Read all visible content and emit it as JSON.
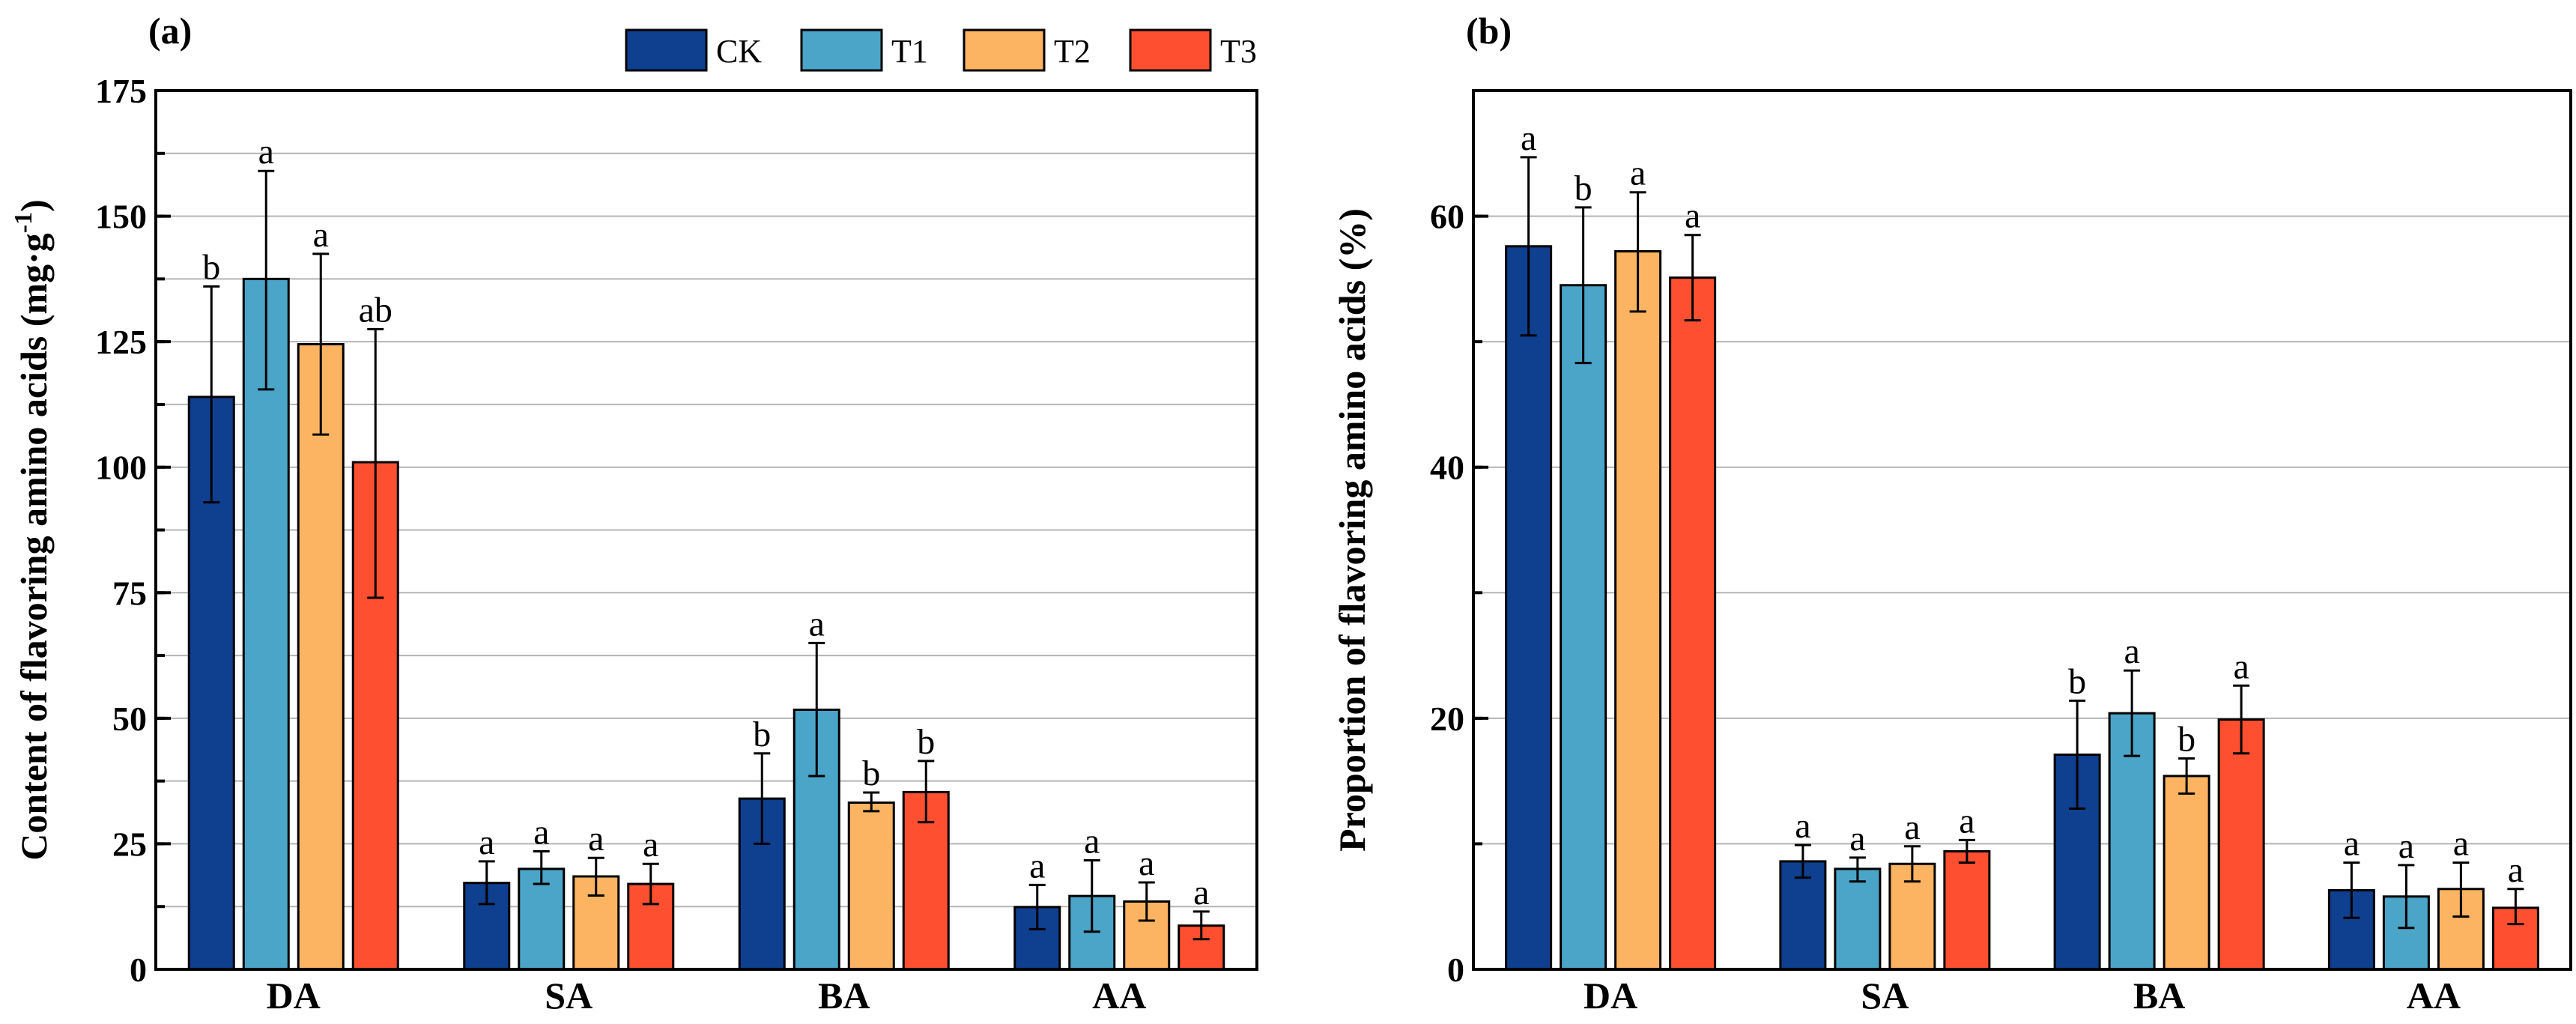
{
  "series_colors": {
    "CK": "#0f3f8f",
    "T1": "#4aa5c8",
    "T2": "#fdb462",
    "T3": "#fe5030"
  },
  "chart_data": [
    {
      "type": "bar",
      "panel": "(a)",
      "title": "",
      "xlabel": "",
      "ylabel": "Content of flavoring amino acids (mg·g",
      "ylabel_sup": "-1",
      "ylabel_end": ")",
      "ylim": [
        0,
        175
      ],
      "yticks": [
        0,
        25,
        50,
        75,
        100,
        125,
        150,
        175
      ],
      "grid_step": 12.5,
      "grid": true,
      "legend": [
        "CK",
        "T1",
        "T2",
        "T3"
      ],
      "legend_position": "top-right",
      "categories": [
        "DA",
        "SA",
        "BA",
        "AA"
      ],
      "series": [
        {
          "name": "CK",
          "values": [
            114,
            17.2,
            34,
            12.4
          ],
          "err_low": [
            93,
            13,
            25,
            8
          ],
          "err_high": [
            136,
            21.5,
            43,
            16.8
          ],
          "letters": [
            "b",
            "a",
            "b",
            "a"
          ]
        },
        {
          "name": "T1",
          "values": [
            137.5,
            20,
            51.7,
            14.6
          ],
          "err_low": [
            115.5,
            17,
            38.5,
            7.5
          ],
          "err_high": [
            159,
            23.5,
            65,
            21.7
          ],
          "letters": [
            "a",
            "a",
            "a",
            "a"
          ]
        },
        {
          "name": "T2",
          "values": [
            124.5,
            18.5,
            33.2,
            13.5
          ],
          "err_low": [
            106.5,
            14.7,
            31.5,
            9.7
          ],
          "err_high": [
            142.5,
            22.2,
            35.2,
            17.3
          ],
          "letters": [
            "a",
            "a",
            "b",
            "a"
          ]
        },
        {
          "name": "T3",
          "values": [
            101,
            17,
            35.3,
            8.7
          ],
          "err_low": [
            74,
            13,
            29.3,
            6
          ],
          "err_high": [
            127.5,
            21,
            41.5,
            11.5
          ],
          "letters": [
            "ab",
            "a",
            "b",
            "a"
          ]
        }
      ]
    },
    {
      "type": "bar",
      "panel": "(b)",
      "title": "",
      "xlabel": "",
      "ylabel": "Proportion of flavoring amino acids (%)",
      "ylim": [
        0,
        70
      ],
      "yticks": [
        0,
        20,
        40,
        60
      ],
      "grid_step": 10,
      "grid": true,
      "categories": [
        "DA",
        "SA",
        "BA",
        "AA"
      ],
      "series": [
        {
          "name": "CK",
          "values": [
            57.6,
            8.6,
            17.1,
            6.3
          ],
          "err_low": [
            50.5,
            7.3,
            12.8,
            4.1
          ],
          "err_high": [
            64.7,
            9.9,
            21.4,
            8.5
          ],
          "letters": [
            "a",
            "a",
            "b",
            "a"
          ]
        },
        {
          "name": "T1",
          "values": [
            54.5,
            8.0,
            20.4,
            5.8
          ],
          "err_low": [
            48.3,
            7.0,
            17.0,
            3.3
          ],
          "err_high": [
            60.7,
            8.9,
            23.8,
            8.3
          ],
          "letters": [
            "b",
            "a",
            "a",
            "a"
          ]
        },
        {
          "name": "T2",
          "values": [
            57.2,
            8.4,
            15.4,
            6.4
          ],
          "err_low": [
            52.4,
            7.0,
            14.0,
            4.2
          ],
          "err_high": [
            61.9,
            9.8,
            16.8,
            8.5
          ],
          "letters": [
            "a",
            "a",
            "b",
            "a"
          ]
        },
        {
          "name": "T3",
          "values": [
            55.1,
            9.4,
            19.9,
            4.9
          ],
          "err_low": [
            51.7,
            8.5,
            17.2,
            3.6
          ],
          "err_high": [
            58.5,
            10.3,
            22.6,
            6.4
          ],
          "letters": [
            "a",
            "a",
            "a",
            "a"
          ]
        }
      ]
    }
  ]
}
